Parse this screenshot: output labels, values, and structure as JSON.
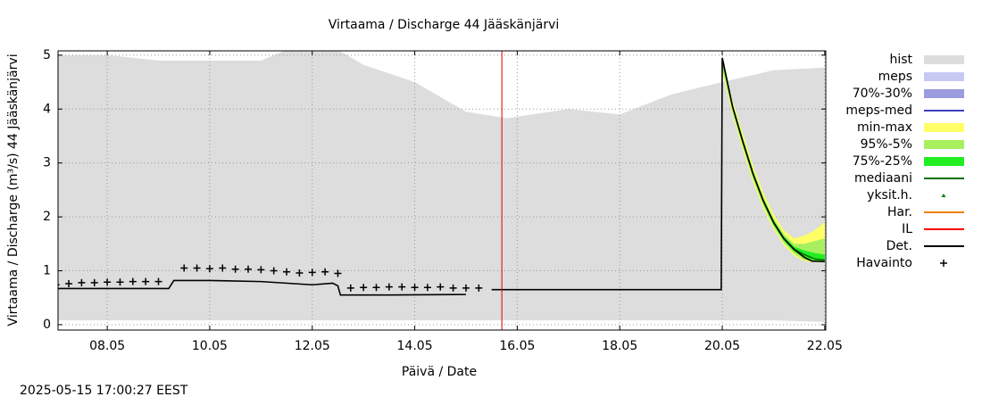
{
  "chart_data": {
    "type": "line",
    "title": "Virtaama / Discharge  44 Jääskänjärvi",
    "xlabel": "Päivä / Date",
    "ylabel": "Virtaama / Discharge (m³/s)  44 Jääskänjärvi",
    "timestamp": "2025-05-15 17:00:27 EEST",
    "xlim": [
      7.04,
      22.02
    ],
    "ylim": [
      -0.1,
      5.08
    ],
    "xticks": [
      {
        "value": 8,
        "label": "08.05"
      },
      {
        "value": 10,
        "label": "10.05"
      },
      {
        "value": 12,
        "label": "12.05"
      },
      {
        "value": 14,
        "label": "14.05"
      },
      {
        "value": 16,
        "label": "16.05"
      },
      {
        "value": 18,
        "label": "18.05"
      },
      {
        "value": 20,
        "label": "20.05"
      },
      {
        "value": 22,
        "label": "22.05"
      }
    ],
    "yticks": [
      0,
      1,
      2,
      3,
      4,
      5
    ],
    "grid": true,
    "now_line": {
      "x": 15.7,
      "color": "#e00000"
    },
    "series": [
      {
        "name": "hist",
        "kind": "area",
        "color": "#dddddd",
        "x": [
          7,
          8,
          9,
          11,
          11.5,
          12.5,
          13,
          14,
          15,
          15.8,
          17,
          18,
          19,
          20,
          21,
          22
        ],
        "upper": [
          5.0,
          5.0,
          4.9,
          4.9,
          5.1,
          5.1,
          4.82,
          4.5,
          3.95,
          3.83,
          4.0,
          3.9,
          4.27,
          4.5,
          4.72,
          4.77
        ],
        "lower": [
          0.08,
          0.08,
          0.08,
          0.08,
          0.08,
          0.08,
          0.08,
          0.08,
          0.08,
          0.08,
          0.08,
          0.08,
          0.08,
          0.08,
          0.08,
          0.05
        ]
      },
      {
        "name": "meps",
        "kind": "area",
        "color": "#c8c8f5"
      },
      {
        "name": "70%-30%",
        "kind": "area",
        "color": "#9b9be0"
      },
      {
        "name": "meps-med",
        "kind": "line",
        "color": "#4040c0"
      },
      {
        "name": "min-max",
        "kind": "area",
        "color": "#ffff66",
        "x": [
          20.0,
          20.2,
          20.4,
          20.6,
          20.8,
          21.0,
          21.2,
          21.4,
          21.6,
          21.8,
          22.0
        ],
        "upper": [
          5.0,
          4.15,
          3.55,
          2.95,
          2.45,
          2.05,
          1.75,
          1.6,
          1.65,
          1.75,
          1.9
        ],
        "lower": [
          4.7,
          3.9,
          3.25,
          2.65,
          2.15,
          1.78,
          1.48,
          1.28,
          1.18,
          1.16,
          1.16
        ]
      },
      {
        "name": "95%-5%",
        "kind": "area",
        "color": "#a8f060",
        "x": [
          20.0,
          20.2,
          20.4,
          20.6,
          20.8,
          21.0,
          21.2,
          21.4,
          21.6,
          21.8,
          22.0
        ],
        "upper": [
          4.98,
          4.1,
          3.48,
          2.88,
          2.38,
          1.98,
          1.68,
          1.5,
          1.5,
          1.55,
          1.6
        ],
        "lower": [
          4.75,
          3.95,
          3.3,
          2.7,
          2.2,
          1.82,
          1.52,
          1.32,
          1.2,
          1.17,
          1.17
        ]
      },
      {
        "name": "75%-25%",
        "kind": "area",
        "color": "#22ee22",
        "x": [
          20.0,
          20.2,
          20.4,
          20.6,
          20.8,
          21.0,
          21.2,
          21.4,
          21.6,
          21.8,
          22.0
        ],
        "upper": [
          4.96,
          4.08,
          3.44,
          2.84,
          2.34,
          1.94,
          1.64,
          1.45,
          1.38,
          1.33,
          1.3
        ],
        "lower": [
          4.85,
          4.0,
          3.36,
          2.76,
          2.26,
          1.86,
          1.56,
          1.36,
          1.24,
          1.19,
          1.18
        ]
      },
      {
        "name": "mediaani",
        "kind": "line",
        "color": "#007000",
        "x": [
          20.0,
          20.2,
          20.4,
          20.6,
          20.8,
          21.0,
          21.2,
          21.4,
          21.6,
          21.8,
          22.0
        ],
        "values": [
          4.95,
          4.05,
          3.4,
          2.8,
          2.3,
          1.9,
          1.6,
          1.4,
          1.3,
          1.22,
          1.2
        ]
      },
      {
        "name": "yksit.h.",
        "kind": "points",
        "marker": "triangle",
        "color": "#008000"
      },
      {
        "name": "Har.",
        "kind": "line",
        "color": "#f08000"
      },
      {
        "name": "IL",
        "kind": "line",
        "color": "#ff0000"
      },
      {
        "name": "Det.",
        "kind": "line",
        "color": "#000000",
        "x": [
          7,
          9.2,
          9.3,
          10,
          11,
          12,
          12.4,
          12.5,
          12.55,
          13.5,
          15.0,
          15.1,
          15.5,
          19.98,
          20.0,
          20.2,
          20.4,
          20.6,
          20.8,
          21.0,
          21.2,
          21.4,
          21.6,
          21.75,
          22.0
        ],
        "values": [
          0.67,
          0.67,
          0.82,
          0.82,
          0.8,
          0.74,
          0.77,
          0.72,
          0.55,
          0.55,
          0.56,
          null,
          0.65,
          0.65,
          4.95,
          4.05,
          3.4,
          2.8,
          2.3,
          1.9,
          1.6,
          1.4,
          1.25,
          1.18,
          1.17
        ]
      },
      {
        "name": "Havainto",
        "kind": "points",
        "marker": "plus",
        "color": "#000000",
        "x": [
          7.0,
          7.25,
          7.5,
          7.75,
          8.0,
          8.25,
          8.5,
          8.75,
          9.0,
          9.5,
          9.75,
          10.0,
          10.25,
          10.5,
          10.75,
          11.0,
          11.25,
          11.5,
          11.75,
          12.0,
          12.25,
          12.5,
          12.75,
          13.0,
          13.25,
          13.5,
          13.75,
          14.0,
          14.25,
          14.5,
          14.75,
          15.0,
          15.25
        ],
        "values": [
          0.74,
          0.76,
          0.78,
          0.78,
          0.79,
          0.79,
          0.8,
          0.8,
          0.8,
          1.05,
          1.05,
          1.04,
          1.05,
          1.03,
          1.03,
          1.02,
          1.0,
          0.98,
          0.96,
          0.97,
          0.98,
          0.95,
          0.68,
          0.69,
          0.69,
          0.7,
          0.7,
          0.69,
          0.69,
          0.7,
          0.68,
          0.68,
          0.68
        ]
      }
    ]
  }
}
